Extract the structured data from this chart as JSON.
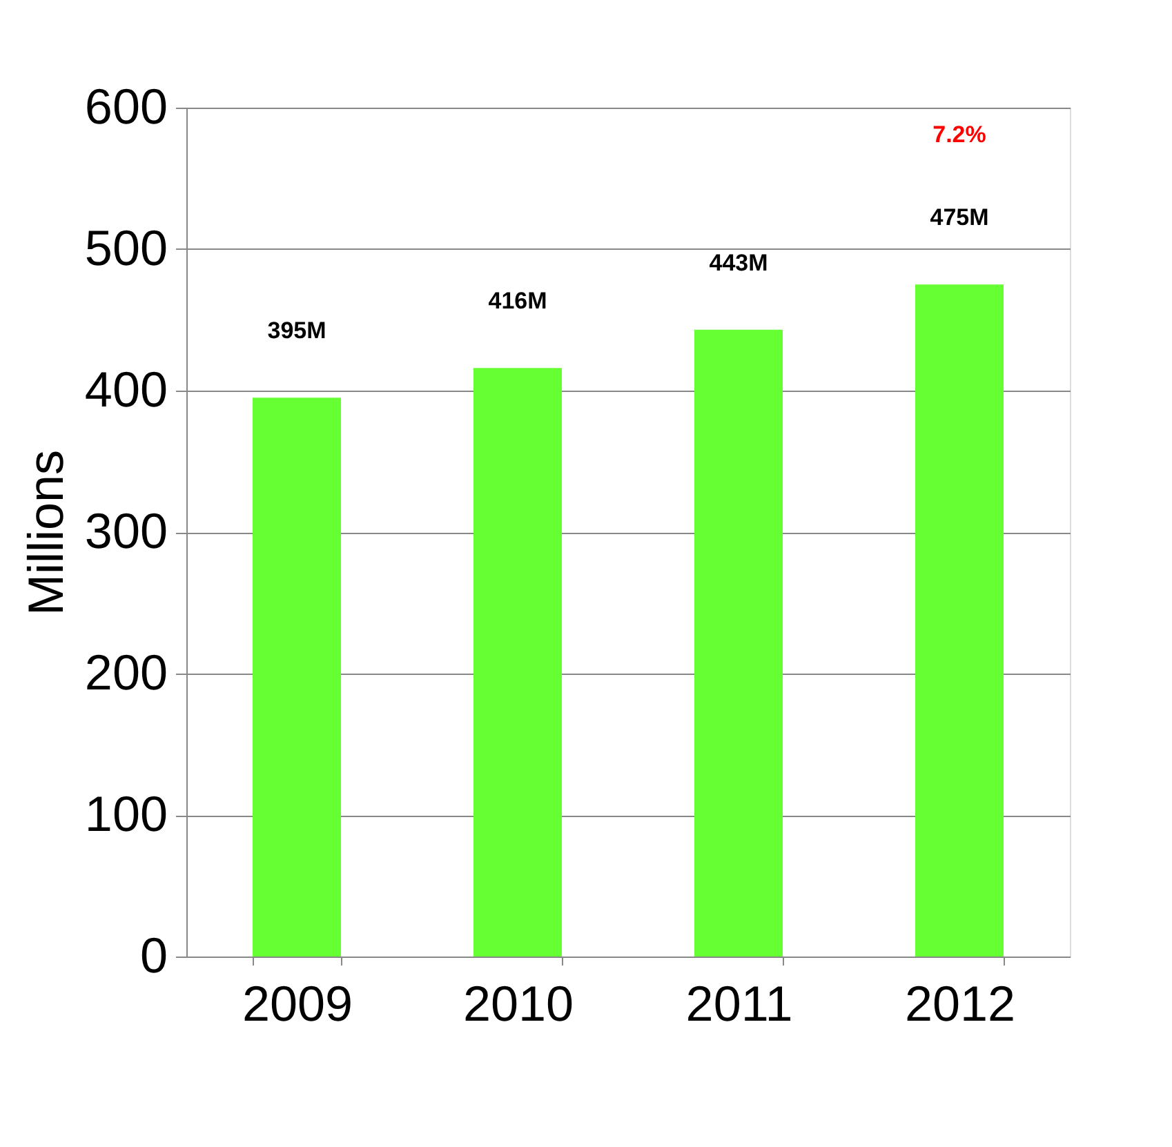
{
  "chart_data": {
    "type": "bar",
    "ylabel": "Millions",
    "categories": [
      "2009",
      "2010",
      "2011",
      "2012"
    ],
    "values": [
      395,
      416,
      443,
      475
    ],
    "value_labels": [
      "395M",
      "416M",
      "443M",
      "475M"
    ],
    "color": "#66ff33",
    "ylim": [
      0,
      600
    ],
    "yticks": [
      0,
      100,
      200,
      300,
      400,
      500,
      600
    ],
    "grid": "y",
    "annotations": [
      "7.2%"
    ]
  }
}
